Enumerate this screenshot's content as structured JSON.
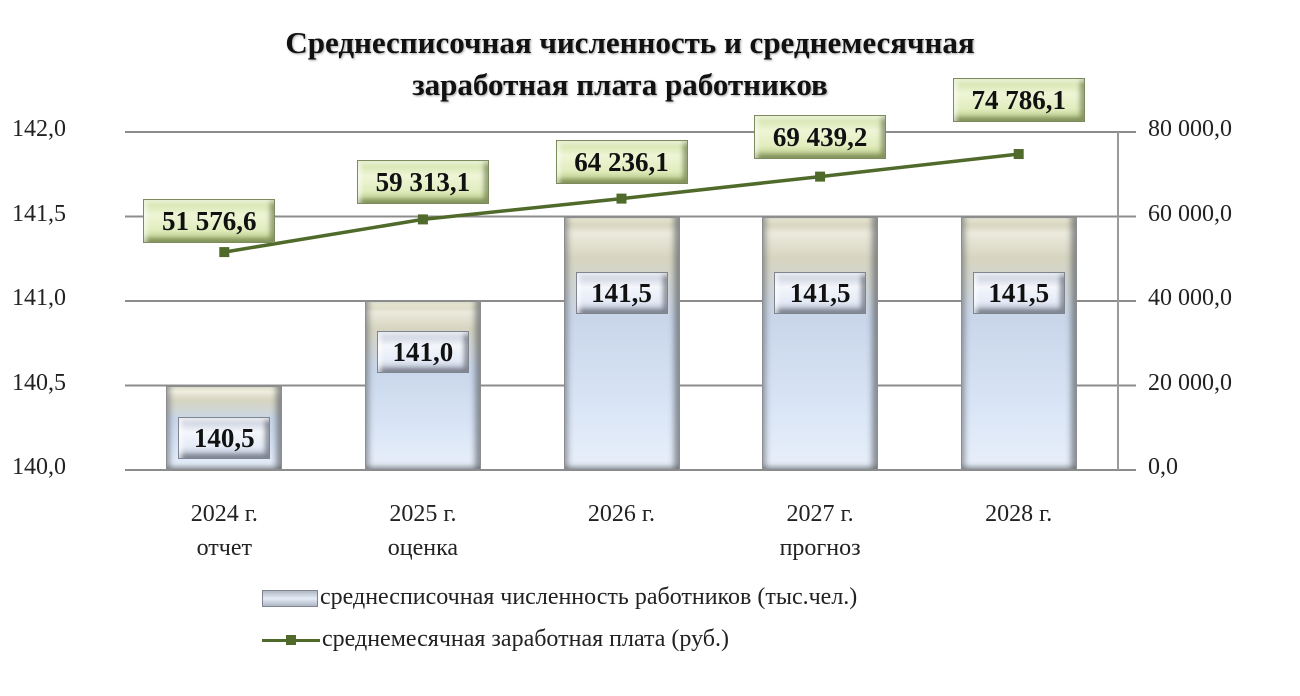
{
  "title": {
    "line1": "Среднесписочная численность и среднемесячная",
    "line2": "заработная плата работников"
  },
  "axes": {
    "left_ticks": [
      "142,0",
      "141,5",
      "141,0",
      "140,5",
      "140,0"
    ],
    "right_ticks": [
      "80 000,0",
      "60 000,0",
      "40 000,0",
      "20 000,0",
      "0,0"
    ]
  },
  "categories": [
    {
      "year": "2024 г.",
      "note": "отчет"
    },
    {
      "year": "2025 г.",
      "note": "оценка"
    },
    {
      "year": "2026 г.",
      "note": ""
    },
    {
      "year": "2027 г.",
      "note": "прогноз"
    },
    {
      "year": "2028 г.",
      "note": ""
    }
  ],
  "bar_labels": [
    "140,5",
    "141,0",
    "141,5",
    "141,5",
    "141,5"
  ],
  "line_labels": [
    "51 576,6",
    "59 313,1",
    "64 236,1",
    "69 439,2",
    "74 786,1"
  ],
  "legend": {
    "bars": "среднесписочная численность работников (тыс.чел.)",
    "line": "среднемесячная заработная плата (руб.)"
  },
  "colors": {
    "line": "#4f6a2a",
    "grid": "#8c8c8c",
    "bar_top": "#d7d5c0",
    "bar_body": "#d9e5f6",
    "line_label_bg": "#e2edbf"
  },
  "chart_data": {
    "type": "bar",
    "title": "Среднесписочная численность и среднемесячная заработная плата работников",
    "categories": [
      "2024 г. отчет",
      "2025 г. оценка",
      "2026 г.",
      "2027 г. прогноз",
      "2028 г."
    ],
    "series": [
      {
        "name": "среднесписочная численность работников (тыс.чел.)",
        "type": "bar",
        "axis": "left",
        "values": [
          140.5,
          141.0,
          141.5,
          141.5,
          141.5
        ]
      },
      {
        "name": "среднемесячная заработная плата (руб.)",
        "type": "line",
        "axis": "right",
        "values": [
          51576.6,
          59313.1,
          64236.1,
          69439.2,
          74786.1
        ]
      }
    ],
    "xlabel": "",
    "ylabel": "",
    "ylim": [
      140.0,
      142.0
    ],
    "y2lim": [
      0,
      80000
    ],
    "y_ticks": [
      140.0,
      140.5,
      141.0,
      141.5,
      142.0
    ],
    "y2_ticks": [
      0,
      20000,
      40000,
      60000,
      80000
    ],
    "grid": true,
    "legend_position": "bottom"
  }
}
